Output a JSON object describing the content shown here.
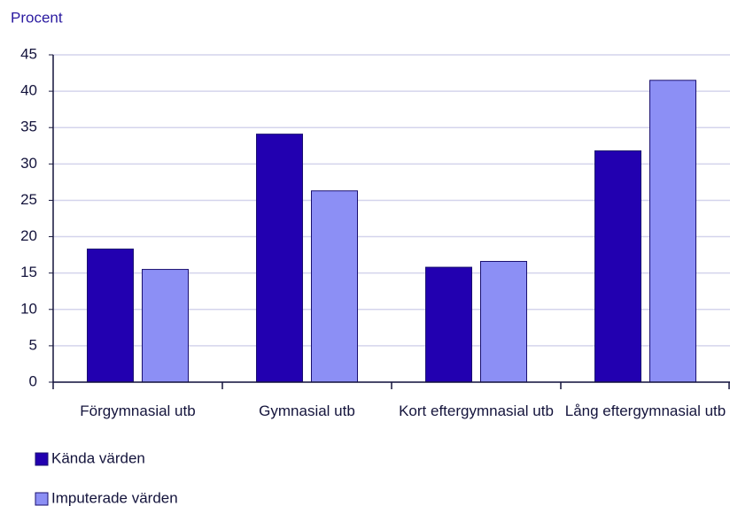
{
  "chart_data": {
    "type": "bar",
    "y_label": "Procent",
    "categories": [
      "Förgymnasial utb",
      "Gymnasial utb",
      "Kort eftergymnasial utb",
      "Lång eftergymnasial utb"
    ],
    "series": [
      {
        "name": "Kända värden",
        "color": "#2200b0",
        "values": [
          18.3,
          34.1,
          15.8,
          31.8
        ]
      },
      {
        "name": "Imputerade värden",
        "color": "#8c8ff5",
        "values": [
          15.5,
          26.3,
          16.6,
          41.5
        ]
      }
    ],
    "ylim": [
      0,
      45
    ],
    "yticks": [
      0,
      5,
      10,
      15,
      20,
      25,
      30,
      35,
      40,
      45
    ],
    "grid": true,
    "legend": "bottom-left"
  }
}
